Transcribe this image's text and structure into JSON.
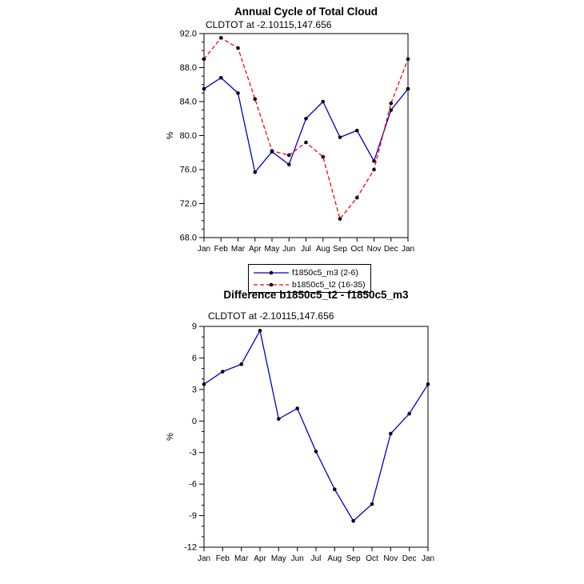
{
  "page": {
    "background": "#ffffff"
  },
  "colors": {
    "axis": "#000000",
    "marker": "#000000",
    "series_blue": "#0000cd",
    "series_red": "#ff0000"
  },
  "chart_data": [
    {
      "type": "line",
      "title": "Annual Cycle of Total Cloud",
      "subtitle": "CLDTOT at -2.10115,147.656",
      "xlabel": "",
      "ylabel": "%",
      "grid": false,
      "legend_position": "below-chart",
      "categories": [
        "Jan",
        "Feb",
        "Mar",
        "Apr",
        "May",
        "Jun",
        "Jul",
        "Aug",
        "Sep",
        "Oct",
        "Nov",
        "Dec",
        "Jan"
      ],
      "ylim": [
        68,
        92
      ],
      "ytick_values": [
        68,
        72,
        76,
        80,
        84,
        88,
        92
      ],
      "ytick_labels": [
        "68.0",
        "72.0",
        "76.0",
        "80.0",
        "84.0",
        "88.0",
        "92.0"
      ],
      "ytick_minor_step": 1,
      "series": [
        {
          "name": "f1850c5_m3 (2-6)",
          "color": "#0000cd",
          "dash": false,
          "marker": "filled-circle",
          "marker_color": "#000000",
          "values": [
            85.5,
            86.8,
            85.0,
            75.7,
            78.1,
            76.6,
            82.0,
            84.0,
            79.8,
            80.6,
            77.0,
            83.0,
            85.5
          ]
        },
        {
          "name": "b1850c5_t2 (16-35)",
          "color": "#ff0000",
          "dash": true,
          "marker": "filled-circle",
          "marker_color": "#000000",
          "values": [
            89.0,
            91.5,
            90.3,
            84.3,
            78.2,
            77.7,
            79.2,
            77.5,
            70.2,
            72.7,
            76.0,
            83.8,
            89.0
          ]
        }
      ]
    },
    {
      "type": "line",
      "title": "Difference b1850c5_t2 - f1850c5_m3",
      "subtitle": "CLDTOT at -2.10115,147.656",
      "xlabel": "",
      "ylabel": "%",
      "grid": false,
      "categories": [
        "Jan",
        "Feb",
        "Mar",
        "Apr",
        "May",
        "Jun",
        "Jul",
        "Aug",
        "Sep",
        "Oct",
        "Nov",
        "Dec",
        "Jan"
      ],
      "ylim": [
        -12,
        9
      ],
      "ytick_values": [
        -12,
        -9,
        -6,
        -3,
        0,
        3,
        6,
        9
      ],
      "ytick_labels": [
        "-12",
        "-9",
        "-6",
        "-3",
        "0",
        "3",
        "6",
        "9"
      ],
      "ytick_minor_step": 1,
      "series": [
        {
          "name": "difference",
          "color": "#0000cd",
          "dash": false,
          "marker": "filled-circle",
          "marker_color": "#000000",
          "values": [
            3.5,
            4.7,
            5.4,
            8.6,
            0.2,
            1.2,
            -2.9,
            -6.5,
            -9.5,
            -7.9,
            -1.2,
            0.7,
            3.5
          ]
        }
      ]
    }
  ],
  "legend": {
    "items": [
      {
        "label": "f1850c5_m3 (2-6)",
        "color": "#0000cd",
        "dash": false
      },
      {
        "label": "b1850c5_t2 (16-35)",
        "color": "#ff0000",
        "dash": true
      }
    ]
  }
}
